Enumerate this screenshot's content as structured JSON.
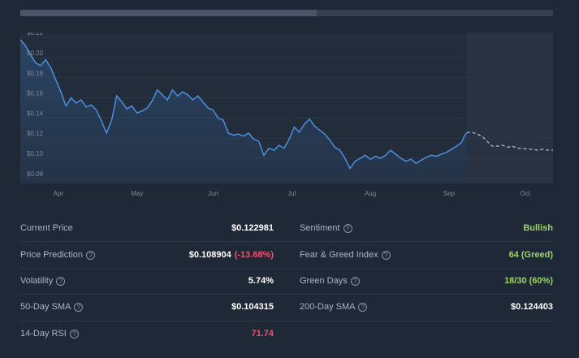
{
  "progress": {
    "value": 0.557
  },
  "chart_data": {
    "type": "line",
    "title": "",
    "xlabel": "",
    "ylabel": "",
    "ylim": [
      0.075,
      0.225
    ],
    "y_ticks": [
      "$0.22",
      "$0.20",
      "$0.18",
      "$0.16",
      "$0.14",
      "$0.12",
      "$0.10",
      "$0.08"
    ],
    "x_tick_labels": [
      "Apr",
      "May",
      "Jun",
      "Jul",
      "Aug",
      "Sep",
      "Oct"
    ],
    "x_tick_days": [
      15,
      46,
      76,
      107,
      138,
      169,
      199
    ],
    "x_range_days": [
      0,
      210
    ],
    "series": [
      {
        "style": "solid",
        "color": "#4a8fe0",
        "points": [
          [
            0,
            0.218
          ],
          [
            2,
            0.212
          ],
          [
            4,
            0.203
          ],
          [
            6,
            0.195
          ],
          [
            8,
            0.192
          ],
          [
            10,
            0.198
          ],
          [
            12,
            0.19
          ],
          [
            14,
            0.178
          ],
          [
            16,
            0.166
          ],
          [
            18,
            0.152
          ],
          [
            20,
            0.16
          ],
          [
            22,
            0.155
          ],
          [
            24,
            0.158
          ],
          [
            26,
            0.151
          ],
          [
            28,
            0.153
          ],
          [
            30,
            0.148
          ],
          [
            32,
            0.137
          ],
          [
            34,
            0.125
          ],
          [
            36,
            0.138
          ],
          [
            38,
            0.162
          ],
          [
            40,
            0.156
          ],
          [
            42,
            0.149
          ],
          [
            44,
            0.152
          ],
          [
            46,
            0.145
          ],
          [
            48,
            0.147
          ],
          [
            50,
            0.15
          ],
          [
            52,
            0.157
          ],
          [
            54,
            0.168
          ],
          [
            56,
            0.163
          ],
          [
            58,
            0.158
          ],
          [
            60,
            0.168
          ],
          [
            62,
            0.162
          ],
          [
            64,
            0.166
          ],
          [
            66,
            0.163
          ],
          [
            68,
            0.158
          ],
          [
            70,
            0.162
          ],
          [
            72,
            0.156
          ],
          [
            74,
            0.15
          ],
          [
            76,
            0.148
          ],
          [
            78,
            0.14
          ],
          [
            80,
            0.138
          ],
          [
            82,
            0.125
          ],
          [
            84,
            0.123
          ],
          [
            86,
            0.124
          ],
          [
            88,
            0.122
          ],
          [
            90,
            0.125
          ],
          [
            92,
            0.119
          ],
          [
            94,
            0.117
          ],
          [
            96,
            0.103
          ],
          [
            98,
            0.11
          ],
          [
            100,
            0.108
          ],
          [
            102,
            0.113
          ],
          [
            104,
            0.11
          ],
          [
            106,
            0.119
          ],
          [
            108,
            0.131
          ],
          [
            110,
            0.126
          ],
          [
            112,
            0.134
          ],
          [
            114,
            0.139
          ],
          [
            116,
            0.132
          ],
          [
            118,
            0.128
          ],
          [
            120,
            0.124
          ],
          [
            122,
            0.118
          ],
          [
            124,
            0.111
          ],
          [
            126,
            0.108
          ],
          [
            128,
            0.1
          ],
          [
            130,
            0.09
          ],
          [
            132,
            0.097
          ],
          [
            134,
            0.1
          ],
          [
            136,
            0.103
          ],
          [
            138,
            0.099
          ],
          [
            140,
            0.102
          ],
          [
            142,
            0.1
          ],
          [
            144,
            0.103
          ],
          [
            146,
            0.108
          ],
          [
            148,
            0.104
          ],
          [
            150,
            0.1
          ],
          [
            152,
            0.097
          ],
          [
            154,
            0.099
          ],
          [
            156,
            0.095
          ],
          [
            158,
            0.098
          ],
          [
            160,
            0.101
          ],
          [
            162,
            0.103
          ],
          [
            164,
            0.102
          ],
          [
            166,
            0.104
          ],
          [
            168,
            0.106
          ],
          [
            170,
            0.109
          ],
          [
            172,
            0.112
          ],
          [
            174,
            0.116
          ],
          [
            175,
            0.122
          ],
          [
            176,
            0.1255
          ]
        ]
      },
      {
        "style": "dashed",
        "color": "#a8b0bc",
        "points": [
          [
            176,
            0.1255
          ],
          [
            178,
            0.126
          ],
          [
            180,
            0.124
          ],
          [
            182,
            0.122
          ],
          [
            184,
            0.117
          ],
          [
            186,
            0.112
          ],
          [
            188,
            0.112
          ],
          [
            190,
            0.113
          ],
          [
            192,
            0.111
          ],
          [
            194,
            0.112
          ],
          [
            196,
            0.11
          ],
          [
            198,
            0.11
          ],
          [
            200,
            0.109
          ],
          [
            202,
            0.109
          ],
          [
            204,
            0.108
          ],
          [
            206,
            0.109
          ],
          [
            208,
            0.108
          ],
          [
            210,
            0.108
          ]
        ]
      }
    ]
  },
  "stats": {
    "current_price": {
      "label": "Current Price",
      "value": "$0.122981"
    },
    "price_prediction": {
      "label": "Price Prediction",
      "value": "$0.108904",
      "change": "(-13.68%)"
    },
    "volatility": {
      "label": "Volatility",
      "value": "5.74%"
    },
    "sma50": {
      "label": "50-Day SMA",
      "value": "$0.104315"
    },
    "rsi14": {
      "label": "14-Day RSI",
      "value": "71.74"
    },
    "sentiment": {
      "label": "Sentiment",
      "value": "Bullish"
    },
    "fear_greed": {
      "label": "Fear & Greed Index",
      "value": "64 (Greed)"
    },
    "green_days": {
      "label": "Green Days",
      "value": "18/30 (60%)"
    },
    "sma200": {
      "label": "200-Day SMA",
      "value": "$0.124403"
    }
  },
  "colors": {
    "bullish": "#9bd36a",
    "bearish": "#f0506e",
    "line": "#4a8fe0"
  },
  "icons": {
    "help": "question-circle-icon"
  },
  "help_glyph": "?"
}
